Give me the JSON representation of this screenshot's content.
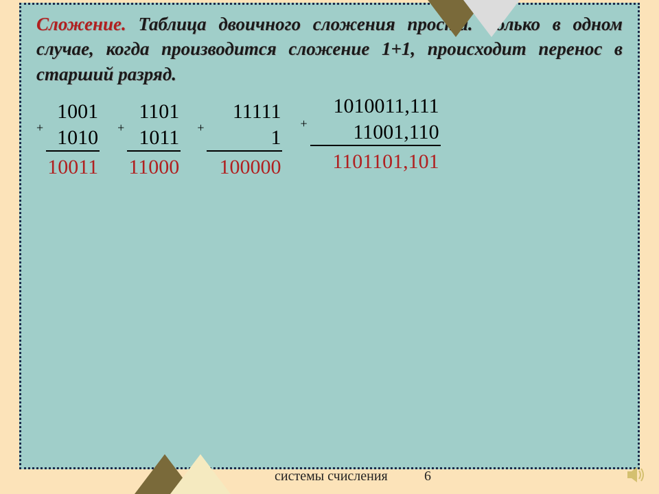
{
  "heading": "Сложение.",
  "paragraph": " Таблица двоичного сложения проста. Только в одном случае, когда производится сложение 1+1, происходит перенос в старший разряд.",
  "examples": [
    {
      "op1": "1001",
      "op2": "1010",
      "result": "10011"
    },
    {
      "op1": "1101",
      "op2": "1011",
      "result": "11000"
    },
    {
      "op1": "11111",
      "op2": "1",
      "result": "100000"
    },
    {
      "op1": "1010011,111",
      "op2": "11001,110",
      "result": "1101101,101"
    }
  ],
  "plus_sign": "+",
  "footer": {
    "label": "системы счисления",
    "page": "6"
  },
  "colors": {
    "slide_bg": "#a0cec9",
    "page_bg": "#fce3b9",
    "heading": "#b02020",
    "result": "#b02020",
    "text": "#1a1a1a",
    "tri_up_dark": "#7a6a3a",
    "tri_up_light": "#f5eac0",
    "tri_down_dark": "#6a6a6a",
    "tri_down_light": "#dcdcdc",
    "sound": "#d4c070"
  },
  "layout": {
    "example_gaps": [
      0,
      26,
      24,
      26
    ],
    "op2_min_widths": [
      "78px",
      "78px",
      "110px",
      "190px"
    ]
  }
}
